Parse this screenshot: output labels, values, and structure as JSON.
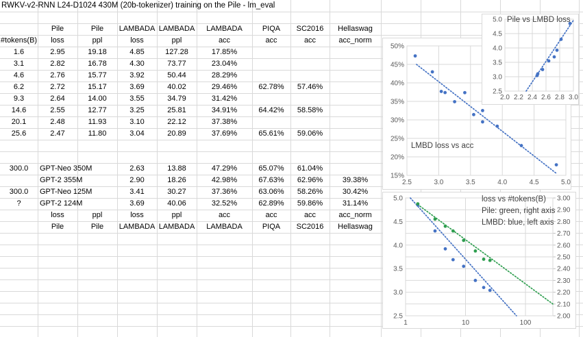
{
  "title": "RWKV-v2-RNN L24-D1024 430M (20b-tokenizer) training on the Pile - lm_eval",
  "colors": {
    "blue": "#4472C4",
    "green": "#2E9E4F",
    "chart_grid": "#D9D9D9",
    "sheet_grid": "#D9D9D9",
    "axis_label": "#595959"
  },
  "table": {
    "header_row1": [
      "",
      "Pile",
      "Pile",
      "LAMBADA",
      "LAMBADA",
      "LAMBADA",
      "PIQA",
      "SC2016",
      "Hellaswag"
    ],
    "header_row2": [
      "#tokens(B)",
      "loss",
      "ppl",
      "loss",
      "ppl",
      "acc",
      "acc",
      "acc",
      "acc_norm"
    ],
    "rows": [
      [
        "1.6",
        "2.95",
        "19.18",
        "4.85",
        "127.28",
        "17.85%",
        "",
        "",
        ""
      ],
      [
        "3.1",
        "2.82",
        "16.78",
        "4.30",
        "73.77",
        "23.04%",
        "",
        "",
        ""
      ],
      [
        "4.6",
        "2.76",
        "15.77",
        "3.92",
        "50.44",
        "28.29%",
        "",
        "",
        ""
      ],
      [
        "6.2",
        "2.72",
        "15.17",
        "3.69",
        "40.02",
        "29.46%",
        "62.78%",
        "57.46%",
        ""
      ],
      [
        "9.3",
        "2.64",
        "14.00",
        "3.55",
        "34.79",
        "31.42%",
        "",
        "",
        ""
      ],
      [
        "14.6",
        "2.55",
        "12.77",
        "3.25",
        "25.81",
        "34.91%",
        "64.42%",
        "58.58%",
        ""
      ],
      [
        "20.1",
        "2.48",
        "11.93",
        "3.10",
        "22.12",
        "37.38%",
        "",
        "",
        ""
      ],
      [
        "25.6",
        "2.47",
        "11.80",
        "3.04",
        "20.89",
        "37.69%",
        "65.61%",
        "59.06%",
        ""
      ]
    ],
    "gpt_rows": [
      [
        "300.0",
        "GPT-Neo 350M",
        "2.63",
        "13.88",
        "47.29%",
        "65.07%",
        "61.04%",
        ""
      ],
      [
        "",
        "GPT-2 355M",
        "2.90",
        "18.26",
        "42.98%",
        "67.63%",
        "62.96%",
        "39.38%"
      ],
      [
        "300.0",
        "GPT-Neo 125M",
        "3.41",
        "30.27",
        "37.36%",
        "63.06%",
        "58.26%",
        "30.42%"
      ],
      [
        "?",
        "GPT-2 124M",
        "3.69",
        "40.06",
        "32.52%",
        "62.89%",
        "59.86%",
        "31.14%"
      ]
    ],
    "footer_row1": [
      "loss",
      "ppl",
      "loss",
      "ppl",
      "acc",
      "acc",
      "acc",
      "acc_norm"
    ],
    "footer_row2": [
      "Pile",
      "Pile",
      "LAMBADA",
      "LAMBADA",
      "LAMBADA",
      "PIQA",
      "SC2016",
      "Hellaswag"
    ]
  },
  "chart_data": [
    {
      "id": "pile-vs-lmbd-loss",
      "type": "scatter",
      "title": "Pile vs LMBD loss",
      "xlim": [
        2.0,
        3.0
      ],
      "ylim": [
        2.5,
        5.0
      ],
      "x_ticks": [
        "2.0",
        "2.2",
        "2.4",
        "2.6",
        "2.8",
        "3.0"
      ],
      "y_ticks": [
        "5.0",
        "4.5",
        "4.0",
        "3.5",
        "3.0",
        "2.5"
      ],
      "points": [
        [
          2.95,
          4.85
        ],
        [
          2.82,
          4.3
        ],
        [
          2.76,
          3.92
        ],
        [
          2.72,
          3.69
        ],
        [
          2.64,
          3.55
        ],
        [
          2.55,
          3.25
        ],
        [
          2.48,
          3.1
        ],
        [
          2.47,
          3.04
        ]
      ],
      "trendline": {
        "style": "dotted",
        "from": [
          2.31,
          2.5
        ],
        "to": [
          3.0,
          4.96
        ]
      }
    },
    {
      "id": "lmbd-loss-vs-acc",
      "type": "scatter",
      "label": "LMBD loss vs acc",
      "xlim": [
        2.5,
        5.0
      ],
      "ylim_pct": [
        15,
        50
      ],
      "x_ticks": [
        "2.5",
        "3.0",
        "3.5",
        "4.0",
        "4.5",
        "5.0"
      ],
      "y_ticks": [
        "50%",
        "45%",
        "40%",
        "35%",
        "30%",
        "25%",
        "20%",
        "15%"
      ],
      "points": [
        [
          4.85,
          17.85
        ],
        [
          4.3,
          23.04
        ],
        [
          3.92,
          28.29
        ],
        [
          3.69,
          29.46
        ],
        [
          3.55,
          31.42
        ],
        [
          3.25,
          34.91
        ],
        [
          3.1,
          37.38
        ],
        [
          3.04,
          37.69
        ],
        [
          2.63,
          47.29
        ],
        [
          2.9,
          42.98
        ],
        [
          3.41,
          37.36
        ],
        [
          3.69,
          32.52
        ]
      ],
      "trendline": {
        "style": "dotted",
        "from": [
          2.65,
          45.0
        ],
        "to": [
          4.86,
          15.4
        ]
      }
    },
    {
      "id": "loss-vs-tokens",
      "type": "scatter",
      "legend": [
        "loss vs #tokens(B)",
        "Pile: green, right axis",
        "LMBD: blue, left axis"
      ],
      "x_log": true,
      "xlim": [
        1,
        290
      ],
      "x_ticks": [
        "1",
        "10",
        "100"
      ],
      "left_ylim": [
        2.5,
        5.0
      ],
      "left_ticks": [
        "5.0",
        "4.5",
        "4.0",
        "3.5",
        "3.0",
        "2.5"
      ],
      "right_ylim": [
        2.0,
        3.0
      ],
      "right_ticks": [
        "3.00",
        "2.90",
        "2.80",
        "2.70",
        "2.60",
        "2.50",
        "2.40",
        "2.30",
        "2.20",
        "2.10",
        "2.00"
      ],
      "series": [
        {
          "name": "LMBD",
          "color_key": "blue",
          "axis": "left",
          "x": [
            1.6,
            3.1,
            4.6,
            6.2,
            9.3,
            14.6,
            20.1,
            25.6
          ],
          "y": [
            4.85,
            4.3,
            3.92,
            3.69,
            3.55,
            3.25,
            3.1,
            3.04
          ],
          "trendline": {
            "style": "dotted",
            "from": [
              1.2,
              5.0
            ],
            "to": [
              70.8,
              2.5
            ]
          }
        },
        {
          "name": "Pile",
          "color_key": "green",
          "axis": "right",
          "x": [
            1.6,
            3.1,
            4.6,
            6.2,
            9.3,
            14.6,
            20.1,
            25.6
          ],
          "y": [
            2.95,
            2.82,
            2.76,
            2.72,
            2.64,
            2.55,
            2.48,
            2.47
          ],
          "trendline": {
            "style": "dotted",
            "from": [
              1.74,
              2.93
            ],
            "to": [
              286,
              2.1
            ]
          }
        }
      ]
    }
  ]
}
